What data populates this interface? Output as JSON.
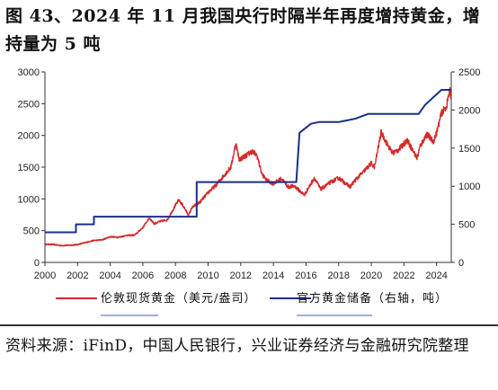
{
  "title": "图 43、2024 年 11 月我国央行时隔半年再度增持黄金，增持量为 5 吨",
  "source": "资料来源：iFinD，中国人民银行，兴业证券经济与金融研究院整理",
  "colors": {
    "gold_series": "#d42a2a",
    "reserve_series": "#1a2f8a",
    "axis": "#333333"
  },
  "chart_data": {
    "type": "line",
    "x_ticks": [
      "2000",
      "2002",
      "2004",
      "2006",
      "2008",
      "2010",
      "2012",
      "2014",
      "2016",
      "2018",
      "2020",
      "2022",
      "2024"
    ],
    "xlim": [
      2000,
      2024.9
    ],
    "y_left": {
      "ticks": [
        "0",
        "500",
        "1000",
        "1500",
        "2000",
        "2500",
        "3000"
      ],
      "lim": [
        0,
        3000
      ]
    },
    "y_right": {
      "ticks": [
        "0",
        "500",
        "1000",
        "1500",
        "2000",
        "2500"
      ],
      "lim": [
        0,
        2500
      ]
    },
    "series": [
      {
        "name": "伦敦现货黄金（美元/盎司）",
        "axis": "left",
        "points": [
          [
            2000.0,
            285
          ],
          [
            2000.5,
            282
          ],
          [
            2001.0,
            265
          ],
          [
            2001.5,
            270
          ],
          [
            2002.0,
            280
          ],
          [
            2002.5,
            315
          ],
          [
            2003.0,
            345
          ],
          [
            2003.5,
            355
          ],
          [
            2004.0,
            405
          ],
          [
            2004.5,
            395
          ],
          [
            2005.0,
            425
          ],
          [
            2005.5,
            430
          ],
          [
            2006.0,
            550
          ],
          [
            2006.4,
            700
          ],
          [
            2006.7,
            610
          ],
          [
            2007.0,
            640
          ],
          [
            2007.5,
            670
          ],
          [
            2008.0,
            900
          ],
          [
            2008.2,
            980
          ],
          [
            2008.5,
            880
          ],
          [
            2008.8,
            740
          ],
          [
            2009.0,
            860
          ],
          [
            2009.5,
            950
          ],
          [
            2010.0,
            1100
          ],
          [
            2010.5,
            1220
          ],
          [
            2011.0,
            1380
          ],
          [
            2011.4,
            1500
          ],
          [
            2011.7,
            1880
          ],
          [
            2011.9,
            1620
          ],
          [
            2012.3,
            1680
          ],
          [
            2012.7,
            1750
          ],
          [
            2013.0,
            1680
          ],
          [
            2013.3,
            1390
          ],
          [
            2013.6,
            1290
          ],
          [
            2014.0,
            1240
          ],
          [
            2014.5,
            1320
          ],
          [
            2014.9,
            1190
          ],
          [
            2015.3,
            1200
          ],
          [
            2015.9,
            1060
          ],
          [
            2016.5,
            1330
          ],
          [
            2016.9,
            1150
          ],
          [
            2017.5,
            1260
          ],
          [
            2018.0,
            1330
          ],
          [
            2018.7,
            1190
          ],
          [
            2019.0,
            1290
          ],
          [
            2019.5,
            1420
          ],
          [
            2020.0,
            1560
          ],
          [
            2020.2,
            1500
          ],
          [
            2020.6,
            2050
          ],
          [
            2021.0,
            1850
          ],
          [
            2021.3,
            1720
          ],
          [
            2021.7,
            1780
          ],
          [
            2022.2,
            1930
          ],
          [
            2022.8,
            1640
          ],
          [
            2023.0,
            1830
          ],
          [
            2023.4,
            2020
          ],
          [
            2023.8,
            1900
          ],
          [
            2024.0,
            2040
          ],
          [
            2024.3,
            2350
          ],
          [
            2024.6,
            2450
          ],
          [
            2024.8,
            2700
          ],
          [
            2024.9,
            2600
          ]
        ]
      },
      {
        "name": "官方黄金储备（右轴，吨）",
        "axis": "right",
        "points": [
          [
            2000.0,
            395
          ],
          [
            2001.9,
            395
          ],
          [
            2001.9,
            500
          ],
          [
            2003.0,
            500
          ],
          [
            2003.0,
            600
          ],
          [
            2009.3,
            600
          ],
          [
            2009.3,
            1054
          ],
          [
            2015.4,
            1054
          ],
          [
            2015.6,
            1700
          ],
          [
            2016.3,
            1820
          ],
          [
            2016.8,
            1842
          ],
          [
            2018.0,
            1842
          ],
          [
            2019.0,
            1885
          ],
          [
            2019.8,
            1948
          ],
          [
            2022.9,
            1948
          ],
          [
            2023.3,
            2068
          ],
          [
            2023.8,
            2165
          ],
          [
            2024.3,
            2264
          ],
          [
            2024.9,
            2264
          ]
        ]
      }
    ],
    "legend": [
      "伦敦现货黄金（美元/盎司）",
      "官方黄金储备（右轴，吨）"
    ],
    "legend_position": "bottom",
    "grid": false
  }
}
